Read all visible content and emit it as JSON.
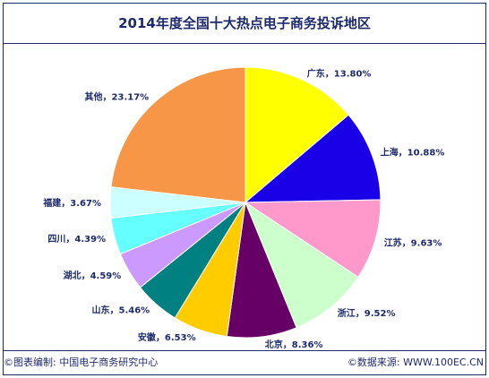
{
  "title": "2014年度全国十大热点电子商务投诉地区",
  "footer": {
    "source_left": "©图表编制: 中国电子商务研究中心",
    "source_right": "©数据来源: WWW.100EC.CN"
  },
  "chart_data": {
    "type": "pie",
    "title": "2014年度全国十大热点电子商务投诉地区",
    "slices": [
      {
        "label": "广东",
        "value": 13.8,
        "text": "13.80%",
        "color": "#ffff00"
      },
      {
        "label": "上海",
        "value": 10.88,
        "text": "10.88%",
        "color": "#1a00e6"
      },
      {
        "label": "江苏",
        "value": 9.63,
        "text": "9.63%",
        "color": "#ff99cc"
      },
      {
        "label": "浙江",
        "value": 9.52,
        "text": "9.52%",
        "color": "#ccffcc"
      },
      {
        "label": "北京",
        "value": 8.36,
        "text": "8.36%",
        "color": "#660066"
      },
      {
        "label": "安徽",
        "value": 6.53,
        "text": "6.53%",
        "color": "#ffcc00"
      },
      {
        "label": "山东",
        "value": 5.46,
        "text": "5.46%",
        "color": "#008080"
      },
      {
        "label": "湖北",
        "value": 4.59,
        "text": "4.59%",
        "color": "#cc99ff"
      },
      {
        "label": "四川",
        "value": 4.39,
        "text": "4.39%",
        "color": "#66ffff"
      },
      {
        "label": "福建",
        "value": 3.67,
        "text": "3.67%",
        "color": "#ccffff"
      },
      {
        "label": "其他",
        "value": 23.17,
        "text": "23.17%",
        "color": "#f79646"
      }
    ]
  }
}
